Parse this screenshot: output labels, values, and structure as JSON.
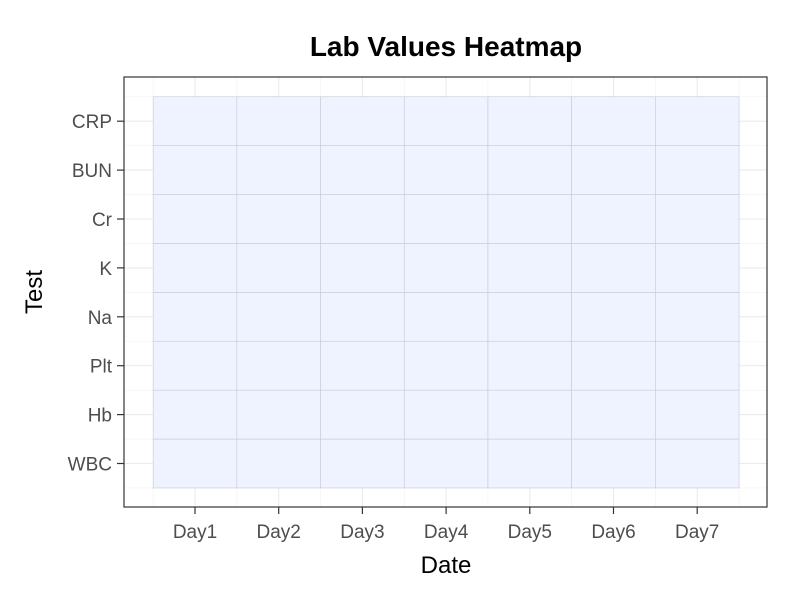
{
  "chart_data": {
    "type": "heatmap",
    "title": "Lab Values Heatmap",
    "xlabel": "Date",
    "ylabel": "Test",
    "x_categories": [
      "Day1",
      "Day2",
      "Day3",
      "Day4",
      "Day5",
      "Day6",
      "Day7"
    ],
    "y_categories": [
      "WBC",
      "Hb",
      "Plt",
      "Na",
      "K",
      "Cr",
      "BUN",
      "CRP"
    ],
    "cells_uniform": true,
    "cell_fill": "#eef3ff",
    "cell_border": "#c8c9d6",
    "grid": true,
    "legend": "none",
    "theme": "bw"
  }
}
